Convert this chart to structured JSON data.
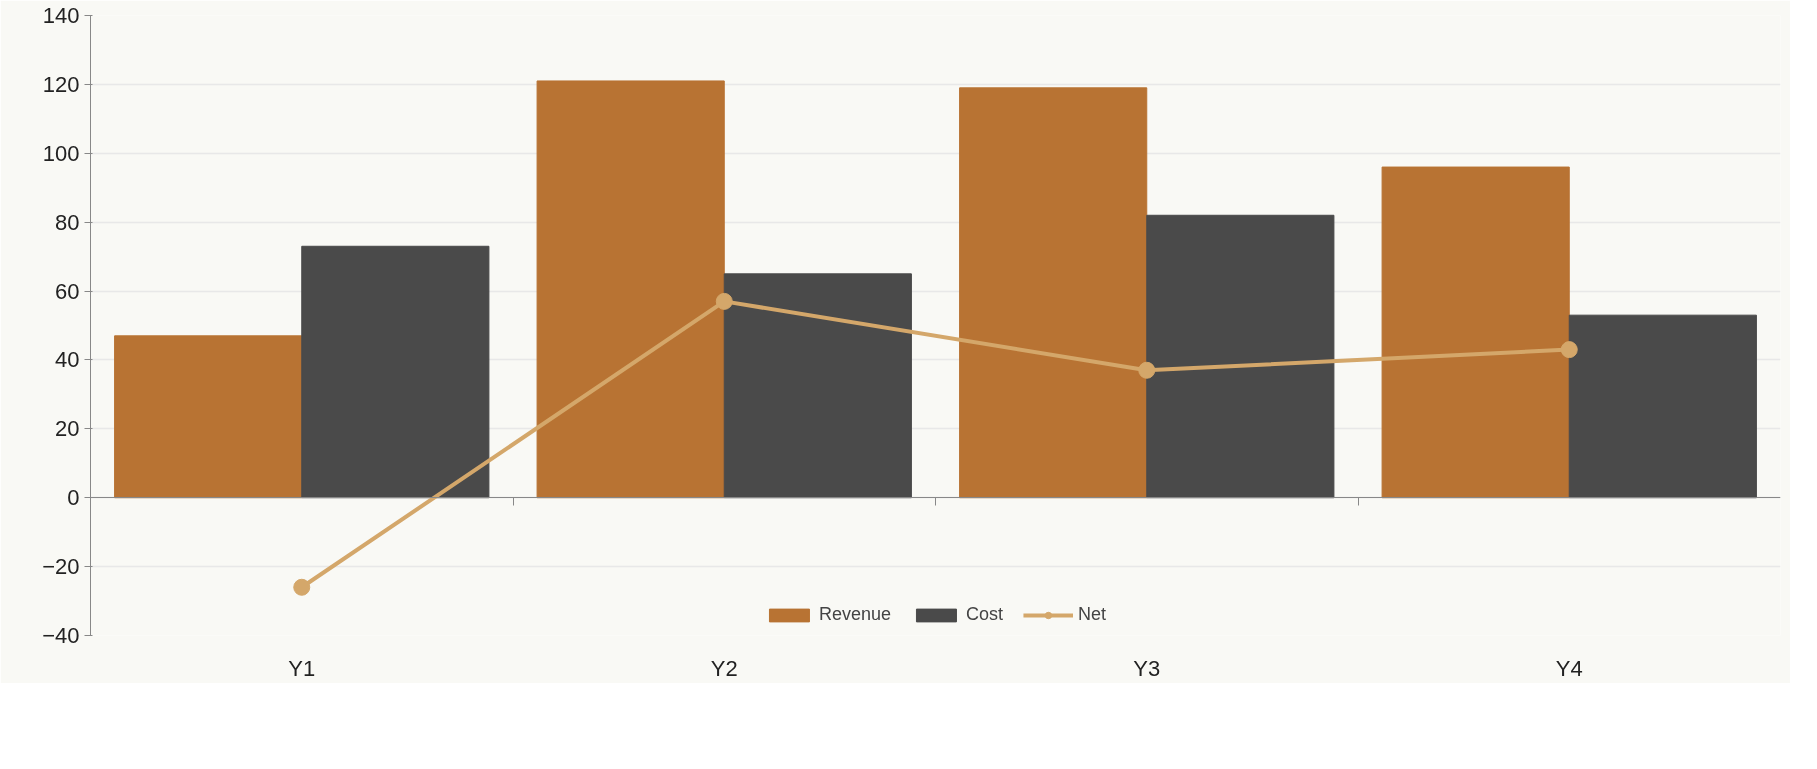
{
  "chart_data": {
    "type": "bar",
    "categories": [
      "Y1",
      "Y2",
      "Y3",
      "Y4"
    ],
    "series": [
      {
        "name": "Revenue",
        "color": "#b87333",
        "values": [
          47,
          121,
          119,
          96
        ]
      },
      {
        "name": "Cost",
        "color": "#4a4a4a",
        "values": [
          73,
          65,
          82,
          53
        ]
      },
      {
        "name": "Net",
        "type": "line",
        "color": "#d4a76a",
        "values": [
          -26,
          57,
          37,
          43
        ]
      }
    ],
    "ylim": [
      -40,
      140
    ],
    "yticks": [
      -40,
      -20,
      0,
      20,
      40,
      60,
      80,
      100,
      120,
      140
    ],
    "grid": "y",
    "legend": "bottom",
    "marker": "circle",
    "line_style": "solid"
  }
}
